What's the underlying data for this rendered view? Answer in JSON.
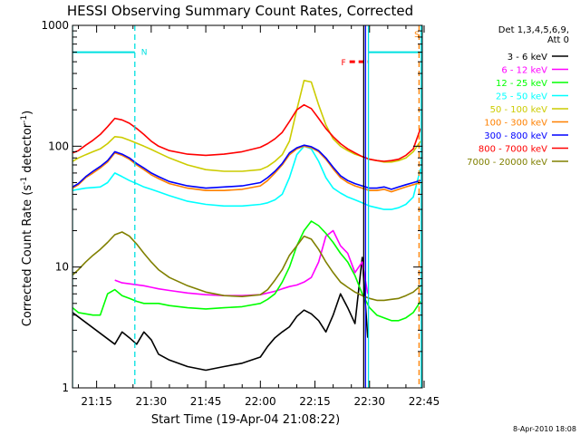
{
  "chart_data": {
    "type": "line",
    "title": "HESSI Observing Summary Count Rates, Corrected",
    "xlabel": "Start Time (19-Apr-04 21:08:22)",
    "ylabel_main": "Corrected Count Rate (s",
    "ylabel_sup1": "-1",
    "ylabel_mid": " detector",
    "ylabel_sup2": "-1",
    "ylabel_end": ")",
    "footer_date": "8-Apr-2010 18:08",
    "y_scale": "log",
    "ylim": [
      1,
      1000
    ],
    "xlim": [
      8.37,
      104.5
    ],
    "y_ticks": [
      {
        "value": 1,
        "label": "1"
      },
      {
        "value": 10,
        "label": "10"
      },
      {
        "value": 100,
        "label": "100"
      },
      {
        "value": 1000,
        "label": "1000"
      }
    ],
    "x_ticks": [
      {
        "value": 15,
        "label": "21:15"
      },
      {
        "value": 30,
        "label": "21:30"
      },
      {
        "value": 45,
        "label": "21:45"
      },
      {
        "value": 60,
        "label": "22:00"
      },
      {
        "value": 75,
        "label": "22:15"
      },
      {
        "value": 90,
        "label": "22:30"
      },
      {
        "value": 105,
        "label": "22:45"
      }
    ],
    "legend_placement": "right",
    "legend_header": [
      "Det 1,3,4,5,6,9,",
      "Att 0"
    ],
    "series": [
      {
        "name": "3 - 6 keV",
        "color": "#000000",
        "x": [
          8.4,
          20,
          22,
          24,
          26,
          28,
          30,
          32,
          35,
          40,
          45,
          50,
          55,
          60,
          62,
          64,
          66,
          68,
          70,
          72,
          74,
          76,
          78,
          80,
          82,
          84,
          86,
          88,
          89.5
        ],
        "y": [
          4.2,
          2.3,
          2.9,
          2.6,
          2.3,
          2.9,
          2.5,
          1.9,
          1.7,
          1.5,
          1.4,
          1.5,
          1.6,
          1.8,
          2.2,
          2.6,
          2.9,
          3.2,
          3.9,
          4.4,
          4.1,
          3.6,
          2.9,
          4.0,
          6.0,
          4.6,
          3.4,
          12,
          2.6
        ]
      },
      {
        "name": "6 - 12 keV",
        "color": "#ff00ff",
        "x": [
          20,
          22,
          25,
          28,
          30,
          32,
          35,
          40,
          45,
          50,
          55,
          60,
          62,
          64,
          66,
          68,
          70,
          72,
          74,
          76,
          78,
          80,
          82,
          84,
          86,
          88,
          89.5
        ],
        "y": [
          7.8,
          7.4,
          7.2,
          7.0,
          6.8,
          6.6,
          6.4,
          6.1,
          5.9,
          5.8,
          5.8,
          5.9,
          6.1,
          6.3,
          6.6,
          6.9,
          7.1,
          7.5,
          8.2,
          11,
          18,
          20,
          15,
          13,
          9,
          11,
          6
        ]
      },
      {
        "name": "12 - 25 keV",
        "color": "#00ff00",
        "x": [
          8.4,
          10,
          12,
          14,
          16,
          18,
          20,
          22,
          24,
          26,
          28,
          30,
          32,
          35,
          40,
          45,
          50,
          55,
          60,
          62,
          64,
          66,
          68,
          70,
          72,
          74,
          76,
          78,
          80,
          82,
          84,
          86,
          88,
          90,
          92,
          94,
          96,
          98,
          100,
          102,
          104
        ],
        "y": [
          4.6,
          4.2,
          4.1,
          4.0,
          4.0,
          6.0,
          6.5,
          5.8,
          5.5,
          5.2,
          5.0,
          5.0,
          5.0,
          4.8,
          4.6,
          4.5,
          4.6,
          4.7,
          5.0,
          5.4,
          6.0,
          7.5,
          10,
          15,
          20,
          24,
          22,
          19,
          16,
          13,
          11,
          8.5,
          6,
          4.6,
          4.0,
          3.8,
          3.6,
          3.6,
          3.8,
          4.2,
          5.2
        ]
      },
      {
        "name": "25 - 50 keV",
        "color": "#00ffff",
        "x": [
          8.4,
          10,
          12,
          14,
          16,
          18,
          20,
          22,
          24,
          26,
          28,
          30,
          32,
          35,
          40,
          45,
          50,
          55,
          60,
          62,
          64,
          66,
          68,
          70,
          72,
          74,
          76,
          78,
          80,
          82,
          84,
          86,
          88,
          90,
          92,
          94,
          96,
          98,
          100,
          102,
          104
        ],
        "y": [
          43,
          44,
          45,
          45.5,
          46,
          50,
          60,
          56,
          52,
          49,
          46,
          44,
          42,
          39,
          35,
          33,
          32,
          32,
          33,
          34,
          36,
          40,
          55,
          85,
          100,
          95,
          75,
          55,
          45,
          41,
          38,
          36,
          34,
          32,
          31,
          30,
          30,
          31,
          33,
          38,
          65
        ]
      },
      {
        "name": "50 - 100 keV",
        "color": "#cccc00",
        "x": [
          8.4,
          10,
          12,
          14,
          16,
          18,
          20,
          22,
          24,
          26,
          28,
          30,
          32,
          35,
          40,
          45,
          50,
          55,
          60,
          62,
          64,
          66,
          68,
          70,
          72,
          74,
          76,
          78,
          80,
          82,
          84,
          86,
          88,
          90,
          92,
          94,
          96,
          98,
          100,
          102,
          104
        ],
        "y": [
          75,
          80,
          85,
          90,
          95,
          105,
          120,
          118,
          112,
          106,
          100,
          94,
          88,
          80,
          70,
          64,
          62,
          62,
          64,
          68,
          75,
          85,
          110,
          200,
          350,
          340,
          220,
          150,
          115,
          100,
          92,
          86,
          82,
          78,
          76,
          74,
          74,
          76,
          80,
          90,
          110
        ]
      },
      {
        "name": "100 - 300 keV",
        "color": "#ff8000",
        "x": [
          8.4,
          10,
          12,
          14,
          16,
          18,
          20,
          22,
          24,
          26,
          28,
          30,
          32,
          35,
          40,
          45,
          50,
          55,
          60,
          62,
          64,
          66,
          68,
          70,
          72,
          74,
          76,
          78,
          80,
          82,
          84,
          86,
          88,
          90,
          92,
          94,
          96,
          98,
          100,
          102,
          104
        ],
        "y": [
          45,
          48,
          55,
          60,
          66,
          74,
          88,
          84,
          78,
          70,
          64,
          58,
          54,
          49,
          45,
          43,
          43,
          44,
          47,
          52,
          60,
          70,
          85,
          95,
          100,
          97,
          90,
          78,
          65,
          55,
          50,
          47,
          45,
          43,
          43,
          44,
          42,
          44,
          46,
          48,
          50
        ]
      },
      {
        "name": "300 - 800 keV",
        "color": "#0000ff",
        "x": [
          8.4,
          10,
          12,
          14,
          16,
          18,
          20,
          22,
          24,
          26,
          28,
          30,
          32,
          35,
          40,
          45,
          50,
          55,
          60,
          62,
          64,
          66,
          68,
          70,
          72,
          74,
          76,
          78,
          80,
          82,
          84,
          86,
          88,
          90,
          92,
          94,
          96,
          98,
          100,
          102,
          104
        ],
        "y": [
          46,
          49,
          56,
          62,
          68,
          76,
          90,
          86,
          80,
          72,
          66,
          60,
          56,
          51,
          47,
          45,
          46,
          47,
          50,
          55,
          62,
          72,
          88,
          97,
          102,
          99,
          92,
          80,
          67,
          57,
          52,
          49,
          47,
          45,
          45,
          46,
          44,
          46,
          48,
          50,
          52
        ]
      },
      {
        "name": "800 - 7000 keV",
        "color": "#ff0000",
        "x": [
          8.4,
          10,
          12,
          14,
          16,
          18,
          20,
          22,
          24,
          26,
          28,
          30,
          32,
          35,
          40,
          45,
          50,
          55,
          60,
          62,
          64,
          66,
          68,
          70,
          72,
          74,
          76,
          78,
          80,
          82,
          84,
          86,
          88,
          90,
          92,
          94,
          96,
          98,
          100,
          102,
          104
        ],
        "y": [
          88,
          92,
          102,
          112,
          125,
          145,
          170,
          165,
          155,
          140,
          125,
          110,
          100,
          92,
          86,
          84,
          86,
          90,
          98,
          105,
          115,
          130,
          160,
          200,
          220,
          205,
          170,
          140,
          120,
          105,
          95,
          88,
          82,
          78,
          76,
          75,
          76,
          78,
          84,
          95,
          140
        ]
      },
      {
        "name": "7000 - 20000 keV",
        "color": "#808000",
        "x": [
          8.4,
          10,
          12,
          14,
          16,
          18,
          20,
          22,
          24,
          26,
          28,
          30,
          32,
          35,
          40,
          45,
          50,
          55,
          60,
          62,
          64,
          66,
          68,
          70,
          72,
          74,
          76,
          78,
          80,
          82,
          84,
          86,
          88,
          90,
          92,
          94,
          96,
          98,
          100,
          102,
          104
        ],
        "y": [
          8.6,
          9.5,
          11,
          12.5,
          14,
          16,
          18.5,
          19.5,
          18,
          15.5,
          13,
          11,
          9.5,
          8.2,
          7.0,
          6.2,
          5.8,
          5.7,
          5.9,
          6.5,
          7.8,
          9.5,
          12.5,
          15,
          18,
          17,
          14,
          11,
          9,
          7.5,
          6.8,
          6.2,
          5.8,
          5.5,
          5.3,
          5.3,
          5.4,
          5.5,
          5.8,
          6.2,
          7.0
        ]
      }
    ],
    "annotations": [
      {
        "type": "band",
        "label": "N",
        "color": "#00e0e0",
        "x_start": 8.37,
        "x_end": 25.5,
        "y": 600,
        "line_style": "solid"
      },
      {
        "type": "vline",
        "color": "#00e0e0",
        "x": 25.5,
        "line_style": "dashed"
      },
      {
        "type": "vline",
        "color": "#00e0e0",
        "x": 8.37,
        "line_style": "solid"
      },
      {
        "type": "band",
        "label": "F",
        "color": "#ff0000",
        "x_start": 84.5,
        "x_end": 89.7,
        "y": 500,
        "line_style": "dashed"
      },
      {
        "type": "band",
        "label": "",
        "color": "#00e0e0",
        "x_start": 89.7,
        "x_end": 104.5,
        "y": 600,
        "line_style": "solid"
      },
      {
        "type": "vline",
        "color": "#00e0e0",
        "x": 89.7,
        "line_style": "solid"
      },
      {
        "type": "vline",
        "color": "#000000",
        "x": 88.4,
        "line_style": "solid"
      },
      {
        "type": "vline",
        "color": "#0000ff",
        "x": 88.9,
        "line_style": "solid"
      },
      {
        "type": "vline",
        "color": "#ff8000",
        "x": 103.6,
        "line_style": "dashed"
      },
      {
        "type": "vline",
        "color": "#00e0e0",
        "x": 104.2,
        "line_style": "solid"
      },
      {
        "type": "text",
        "label": "S",
        "color": "#ff8000",
        "x": 103.0,
        "y": 800
      }
    ]
  }
}
